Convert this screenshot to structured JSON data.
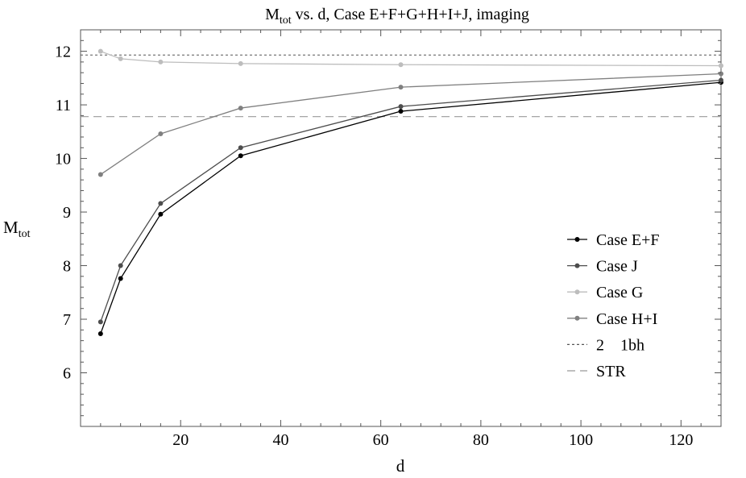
{
  "chart_data": {
    "type": "line",
    "title": {
      "prefix": "M",
      "subscript": "tot",
      "suffix": " vs. d, Case E+F+G+H+I+J, imaging"
    },
    "xlabel": "d",
    "ylabel": {
      "main": "M",
      "subscript": "tot"
    },
    "xlim": [
      0,
      128
    ],
    "ylim": [
      5,
      12.4
    ],
    "xticks": [
      20,
      40,
      60,
      80,
      100,
      120
    ],
    "yticks": [
      6,
      7,
      8,
      9,
      10,
      11,
      12
    ],
    "grid": false,
    "legend_position": "right",
    "series": [
      {
        "name": "Case E+F",
        "color": "#000000",
        "x": [
          4,
          8,
          16,
          32,
          64,
          128
        ],
        "y": [
          6.73,
          7.76,
          8.96,
          10.05,
          10.88,
          11.42
        ]
      },
      {
        "name": "Case J",
        "color": "#4d4d4d",
        "x": [
          4,
          8,
          16,
          32,
          64,
          128
        ],
        "y": [
          6.95,
          8.0,
          9.16,
          10.2,
          10.97,
          11.46
        ]
      },
      {
        "name": "Case G",
        "color": "#bdbdbd",
        "x": [
          4,
          8,
          16,
          32,
          64,
          128
        ],
        "y": [
          12.0,
          11.86,
          11.8,
          11.77,
          11.75,
          11.73
        ]
      },
      {
        "name": "Case H+I",
        "color": "#808080",
        "x": [
          4,
          16,
          32,
          64,
          128
        ],
        "y": [
          9.7,
          10.46,
          10.94,
          11.33,
          11.58
        ]
      }
    ],
    "reference_lines": [
      {
        "name": "2    1bh",
        "y": 11.93,
        "color": "#555555",
        "dash": "dotted"
      },
      {
        "name": "STR",
        "y": 10.78,
        "color": "#999999",
        "dash": "dashed"
      }
    ]
  }
}
